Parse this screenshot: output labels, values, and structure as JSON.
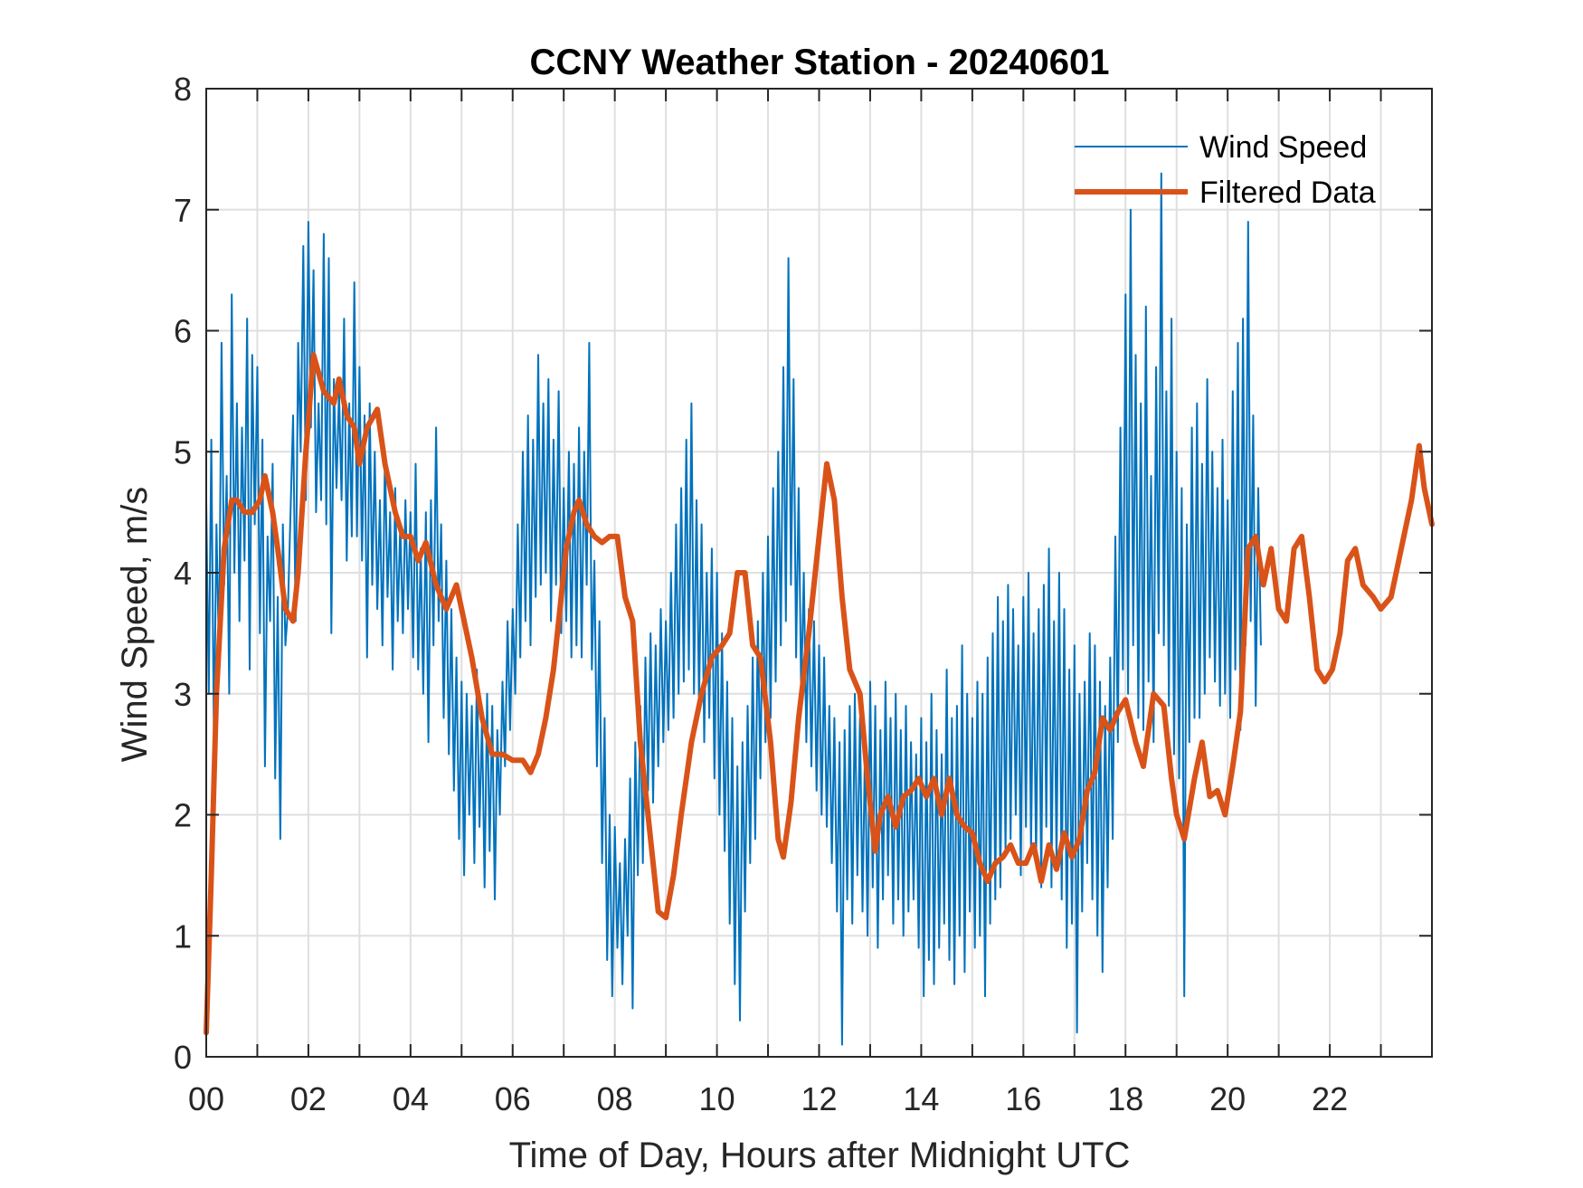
{
  "chart_data": {
    "type": "line",
    "title": "CCNY Weather Station - 20240601",
    "xlabel": "Time of Day, Hours after Midnight UTC",
    "ylabel": "Wind Speed, m/s",
    "xlim": [
      0,
      24
    ],
    "ylim": [
      0,
      8
    ],
    "grid": true,
    "x_ticks": [
      0,
      2,
      4,
      6,
      8,
      10,
      12,
      14,
      16,
      18,
      20,
      22
    ],
    "x_tick_labels": [
      "00",
      "02",
      "04",
      "06",
      "08",
      "10",
      "12",
      "14",
      "16",
      "18",
      "20",
      "22"
    ],
    "x_minor_grid_step": 1,
    "y_ticks": [
      0,
      1,
      2,
      3,
      4,
      5,
      6,
      7,
      8
    ],
    "y_tick_labels": [
      "0",
      "1",
      "2",
      "3",
      "4",
      "5",
      "6",
      "7",
      "8"
    ],
    "legend": {
      "placement": "top-right",
      "entries": [
        "Wind Speed",
        "Filtered Data"
      ]
    },
    "series": [
      {
        "name": "Wind Speed",
        "color": "#0072BD",
        "x_step": 0.05,
        "x_start": 0,
        "values": [
          4.6,
          3.0,
          5.1,
          2.6,
          4.4,
          3.3,
          5.9,
          3.9,
          4.8,
          3.0,
          6.3,
          4.0,
          5.4,
          3.6,
          5.2,
          4.1,
          6.1,
          3.2,
          5.8,
          4.4,
          5.7,
          3.5,
          5.1,
          2.4,
          4.3,
          3.6,
          4.9,
          2.3,
          3.8,
          1.8,
          4.4,
          3.4,
          3.7,
          4.5,
          5.3,
          3.6,
          5.9,
          5.0,
          6.7,
          4.6,
          6.9,
          5.2,
          6.5,
          4.5,
          5.4,
          4.6,
          6.8,
          4.4,
          6.6,
          3.5,
          5.6,
          4.7,
          5.5,
          4.6,
          6.1,
          4.1,
          5.4,
          4.3,
          6.4,
          4.3,
          5.7,
          4.1,
          5.3,
          3.3,
          5.4,
          3.9,
          5.0,
          3.7,
          4.6,
          3.4,
          5.0,
          3.8,
          4.5,
          3.2,
          4.7,
          3.6,
          4.4,
          3.5,
          4.6,
          3.7,
          4.5,
          3.3,
          4.9,
          3.2,
          4.2,
          3.0,
          4.5,
          2.6,
          4.6,
          3.4,
          5.2,
          3.6,
          4.4,
          2.8,
          4.1,
          2.5,
          3.7,
          2.2,
          3.3,
          1.8,
          3.1,
          1.5,
          3.0,
          2.0,
          2.9,
          1.6,
          3.2,
          1.9,
          2.8,
          1.4,
          3.0,
          1.7,
          2.9,
          1.3,
          2.7,
          2.0,
          3.1,
          2.4,
          3.6,
          2.7,
          3.7,
          3.0,
          4.4,
          3.3,
          5.0,
          3.6,
          5.3,
          3.4,
          5.1,
          3.8,
          5.8,
          3.9,
          5.4,
          4.0,
          5.6,
          3.6,
          5.1,
          3.9,
          5.5,
          3.5,
          4.7,
          3.6,
          5.0,
          3.3,
          4.9,
          3.4,
          5.2,
          3.3,
          5.0,
          3.9,
          5.9,
          3.2,
          4.1,
          2.4,
          3.6,
          1.6,
          2.8,
          0.8,
          2.0,
          0.5,
          1.9,
          0.9,
          1.6,
          0.6,
          1.8,
          1.0,
          2.3,
          0.4,
          2.6,
          1.5,
          2.9,
          1.6,
          3.3,
          2.2,
          3.5,
          2.1,
          3.4,
          2.4,
          3.7,
          2.6,
          3.6,
          2.7,
          4.0,
          2.8,
          4.4,
          3.0,
          4.7,
          3.1,
          5.1,
          3.2,
          5.4,
          3.0,
          4.6,
          2.9,
          4.4,
          2.6,
          4.0,
          2.8,
          4.2,
          2.3,
          4.0,
          2.0,
          3.5,
          1.7,
          3.1,
          1.1,
          2.8,
          0.6,
          2.4,
          0.3,
          2.6,
          1.2,
          2.9,
          1.6,
          3.3,
          1.8,
          3.6,
          2.3,
          4.0,
          2.6,
          4.3,
          2.8,
          4.7,
          3.1,
          5.0,
          3.4,
          5.7,
          3.6,
          6.6,
          3.9,
          5.6,
          3.3,
          4.7,
          3.0,
          4.0,
          2.6,
          3.7,
          2.4,
          3.6,
          2.2,
          3.4,
          2.0,
          3.3,
          1.9,
          2.9,
          1.6,
          2.8,
          1.2,
          2.6,
          0.1,
          2.7,
          1.3,
          2.9,
          1.1,
          3.0,
          1.5,
          2.8,
          1.2,
          2.6,
          1.0,
          3.1,
          1.4,
          2.9,
          0.9,
          2.7,
          1.3,
          3.1,
          1.5,
          2.8,
          1.1,
          3.0,
          1.3,
          2.7,
          1.0,
          2.9,
          1.2,
          2.6,
          1.3,
          2.5,
          0.9,
          2.8,
          0.5,
          2.6,
          0.8,
          3.0,
          0.6,
          2.7,
          0.9,
          2.5,
          1.1,
          3.2,
          0.8,
          2.8,
          0.6,
          2.9,
          1.0,
          3.4,
          0.7,
          3.0,
          1.2,
          2.8,
          0.9,
          3.1,
          1.0,
          3.0,
          0.5,
          3.3,
          1.1,
          3.5,
          1.3,
          3.8,
          1.4,
          3.6,
          1.7,
          3.9,
          1.8,
          3.7,
          2.0,
          3.4,
          1.5,
          3.8,
          1.9,
          4.0,
          1.7,
          3.5,
          1.6,
          3.7,
          1.4,
          3.9,
          1.9,
          4.2,
          1.4,
          3.6,
          1.6,
          4.0,
          1.3,
          3.7,
          0.9,
          3.2,
          1.1,
          3.4,
          0.2,
          3.0,
          1.2,
          3.1,
          1.6,
          3.5,
          1.3,
          3.4,
          1.0,
          3.1,
          0.7,
          2.9,
          1.4,
          3.3,
          1.8,
          4.3,
          2.6,
          5.2,
          3.2,
          6.3,
          3.0,
          7.0,
          3.4,
          5.8,
          2.8,
          5.4,
          2.7,
          6.2,
          3.1,
          4.8,
          2.6,
          5.7,
          3.5,
          7.3,
          3.4,
          5.5,
          2.9,
          6.1,
          2.5,
          5.0,
          2.3,
          4.7,
          0.5,
          4.4,
          2.6,
          5.2,
          2.8,
          5.4,
          2.8,
          4.9,
          3.0,
          5.6,
          3.3,
          5.0,
          3.1,
          4.7,
          2.9,
          5.1,
          3.0,
          4.6,
          2.8,
          5.5,
          3.2,
          5.9,
          2.7,
          6.1,
          3.4,
          6.9,
          3.6,
          5.3,
          2.9,
          4.7,
          3.4
        ]
      },
      {
        "name": "Filtered Data",
        "color": "#D95319",
        "points": [
          [
            0,
            0.2
          ],
          [
            0.1,
            1.5
          ],
          [
            0.2,
            3.0
          ],
          [
            0.35,
            4.2
          ],
          [
            0.5,
            4.6
          ],
          [
            0.6,
            4.6
          ],
          [
            0.75,
            4.5
          ],
          [
            0.9,
            4.5
          ],
          [
            1.05,
            4.6
          ],
          [
            1.15,
            4.8
          ],
          [
            1.3,
            4.5
          ],
          [
            1.4,
            4.2
          ],
          [
            1.55,
            3.7
          ],
          [
            1.7,
            3.6
          ],
          [
            1.8,
            4.0
          ],
          [
            1.95,
            5.0
          ],
          [
            2.1,
            5.8
          ],
          [
            2.3,
            5.5
          ],
          [
            2.5,
            5.4
          ],
          [
            2.6,
            5.6
          ],
          [
            2.75,
            5.3
          ],
          [
            2.9,
            5.2
          ],
          [
            3.0,
            4.9
          ],
          [
            3.15,
            5.2
          ],
          [
            3.35,
            5.35
          ],
          [
            3.5,
            4.9
          ],
          [
            3.7,
            4.5
          ],
          [
            3.85,
            4.3
          ],
          [
            4.0,
            4.3
          ],
          [
            4.15,
            4.1
          ],
          [
            4.3,
            4.25
          ],
          [
            4.5,
            3.9
          ],
          [
            4.7,
            3.7
          ],
          [
            4.9,
            3.9
          ],
          [
            5.0,
            3.7
          ],
          [
            5.2,
            3.3
          ],
          [
            5.4,
            2.8
          ],
          [
            5.6,
            2.5
          ],
          [
            5.8,
            2.5
          ],
          [
            6.0,
            2.45
          ],
          [
            6.2,
            2.45
          ],
          [
            6.35,
            2.35
          ],
          [
            6.5,
            2.5
          ],
          [
            6.65,
            2.8
          ],
          [
            6.8,
            3.2
          ],
          [
            6.9,
            3.6
          ],
          [
            7.05,
            4.2
          ],
          [
            7.2,
            4.5
          ],
          [
            7.3,
            4.6
          ],
          [
            7.45,
            4.4
          ],
          [
            7.6,
            4.3
          ],
          [
            7.75,
            4.25
          ],
          [
            7.9,
            4.3
          ],
          [
            8.05,
            4.3
          ],
          [
            8.2,
            3.8
          ],
          [
            8.35,
            3.6
          ],
          [
            8.5,
            2.6
          ],
          [
            8.7,
            1.8
          ],
          [
            8.85,
            1.2
          ],
          [
            9.0,
            1.15
          ],
          [
            9.15,
            1.5
          ],
          [
            9.3,
            2.0
          ],
          [
            9.5,
            2.6
          ],
          [
            9.7,
            3.0
          ],
          [
            9.9,
            3.3
          ],
          [
            10.1,
            3.4
          ],
          [
            10.25,
            3.5
          ],
          [
            10.4,
            4.0
          ],
          [
            10.55,
            4.0
          ],
          [
            10.7,
            3.4
          ],
          [
            10.85,
            3.3
          ],
          [
            11.05,
            2.6
          ],
          [
            11.2,
            1.8
          ],
          [
            11.3,
            1.65
          ],
          [
            11.45,
            2.1
          ],
          [
            11.6,
            2.8
          ],
          [
            11.8,
            3.5
          ],
          [
            12.0,
            4.3
          ],
          [
            12.15,
            4.9
          ],
          [
            12.3,
            4.6
          ],
          [
            12.45,
            3.8
          ],
          [
            12.6,
            3.2
          ],
          [
            12.8,
            3.0
          ],
          [
            12.95,
            2.3
          ],
          [
            13.1,
            1.7
          ],
          [
            13.2,
            2.0
          ],
          [
            13.35,
            2.15
          ],
          [
            13.5,
            1.9
          ],
          [
            13.65,
            2.15
          ],
          [
            13.8,
            2.2
          ],
          [
            13.95,
            2.3
          ],
          [
            14.1,
            2.15
          ],
          [
            14.25,
            2.3
          ],
          [
            14.4,
            2.0
          ],
          [
            14.55,
            2.3
          ],
          [
            14.7,
            2.0
          ],
          [
            14.85,
            1.9
          ],
          [
            15.0,
            1.85
          ],
          [
            15.15,
            1.6
          ],
          [
            15.3,
            1.45
          ],
          [
            15.45,
            1.6
          ],
          [
            15.6,
            1.65
          ],
          [
            15.75,
            1.75
          ],
          [
            15.9,
            1.6
          ],
          [
            16.05,
            1.6
          ],
          [
            16.2,
            1.75
          ],
          [
            16.35,
            1.45
          ],
          [
            16.5,
            1.75
          ],
          [
            16.65,
            1.55
          ],
          [
            16.8,
            1.85
          ],
          [
            16.95,
            1.65
          ],
          [
            17.1,
            1.8
          ],
          [
            17.25,
            2.2
          ],
          [
            17.4,
            2.35
          ],
          [
            17.55,
            2.8
          ],
          [
            17.7,
            2.7
          ],
          [
            17.85,
            2.85
          ],
          [
            18.0,
            2.95
          ],
          [
            18.2,
            2.6
          ],
          [
            18.35,
            2.4
          ],
          [
            18.55,
            3.0
          ],
          [
            18.75,
            2.9
          ],
          [
            18.9,
            2.3
          ],
          [
            19.0,
            2.0
          ],
          [
            19.15,
            1.8
          ],
          [
            19.35,
            2.3
          ],
          [
            19.5,
            2.6
          ],
          [
            19.65,
            2.15
          ],
          [
            19.8,
            2.2
          ],
          [
            19.95,
            2.0
          ],
          [
            20.1,
            2.4
          ],
          [
            20.25,
            2.85
          ],
          [
            20.4,
            4.2
          ],
          [
            20.55,
            4.3
          ],
          [
            20.7,
            3.9
          ],
          [
            20.85,
            4.2
          ],
          [
            21.0,
            3.7
          ],
          [
            21.15,
            3.6
          ],
          [
            21.3,
            4.2
          ],
          [
            21.45,
            4.3
          ],
          [
            21.6,
            3.8
          ],
          [
            21.75,
            3.2
          ],
          [
            21.9,
            3.1
          ],
          [
            22.05,
            3.2
          ],
          [
            22.2,
            3.5
          ],
          [
            22.35,
            4.1
          ],
          [
            22.5,
            4.2
          ],
          [
            22.65,
            3.9
          ],
          [
            22.85,
            3.8
          ],
          [
            23.0,
            3.7
          ],
          [
            23.2,
            3.8
          ],
          [
            23.4,
            4.2
          ],
          [
            23.6,
            4.6
          ],
          [
            23.75,
            5.05
          ],
          [
            23.85,
            4.7
          ],
          [
            24.0,
            4.4
          ]
        ]
      }
    ]
  }
}
